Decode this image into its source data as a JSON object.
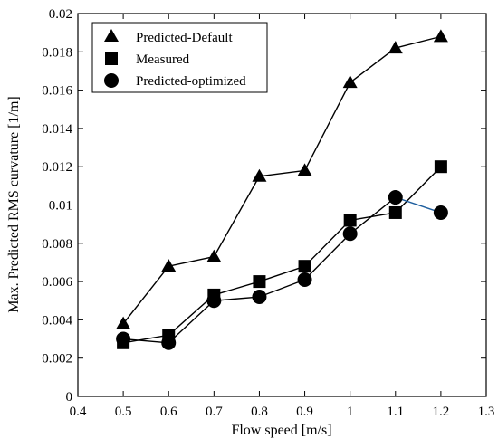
{
  "chart_data": {
    "type": "line",
    "xlabel": "Flow speed [m/s]",
    "ylabel": "Max. Predicted RMS curvature [1/m]",
    "xlim": [
      0.4,
      1.3
    ],
    "ylim": [
      0,
      0.02
    ],
    "xticks": [
      "0.4",
      "0.5",
      "0.6",
      "0.7",
      "0.8",
      "0.9",
      "1",
      "1.1",
      "1.2",
      "1.3"
    ],
    "yticks": [
      "0",
      "0.002",
      "0.004",
      "0.006",
      "0.008",
      "0.01",
      "0.012",
      "0.014",
      "0.016",
      "0.018",
      "0.02"
    ],
    "grid": false,
    "legend_position": "top-left",
    "x": [
      0.5,
      0.6,
      0.7,
      0.8,
      0.9,
      1.0,
      1.1,
      1.2
    ],
    "series": [
      {
        "name": "Predicted-Default",
        "marker": "triangle",
        "values": [
          0.0038,
          0.0068,
          0.0073,
          0.0115,
          0.0118,
          0.0164,
          0.0182,
          0.0188
        ]
      },
      {
        "name": "Measured",
        "marker": "square",
        "values": [
          0.0028,
          0.0032,
          0.0053,
          0.006,
          0.0068,
          0.0092,
          0.0096,
          0.012
        ]
      },
      {
        "name": "Predicted-optimized",
        "marker": "circle",
        "values": [
          0.003,
          0.0028,
          0.005,
          0.0052,
          0.0061,
          0.0085,
          0.0104,
          0.0096
        ]
      }
    ],
    "colors": {
      "line": "#000000",
      "highlight_segment": "#1f5f9f",
      "marker": "#000000"
    }
  }
}
